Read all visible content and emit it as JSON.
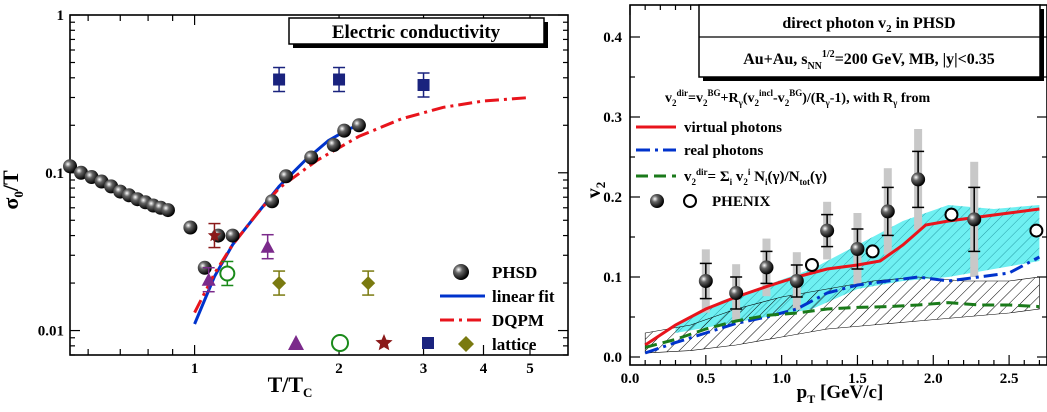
{
  "left": {
    "chart_data": {
      "type": "scatter",
      "title": "Electric conductivity",
      "ylabel": "σ0/T",
      "xlabel": "T/TC",
      "x_scale": "log",
      "y_scale": "log",
      "xlim": [
        0.55,
        6.0
      ],
      "ylim": [
        0.007,
        1.0
      ],
      "x_ticks": [
        "1",
        "2",
        "3",
        "4",
        "5"
      ],
      "y_ticks": [
        "0.01",
        "0.1",
        "1"
      ],
      "series": [
        {
          "name": "PHSD",
          "marker": "sphere",
          "color": "#111111",
          "x": [
            0.55,
            0.58,
            0.61,
            0.64,
            0.67,
            0.7,
            0.73,
            0.76,
            0.79,
            0.82,
            0.85,
            0.88,
            0.98,
            1.05,
            1.12,
            1.2,
            1.45,
            1.55,
            1.75,
            1.95,
            2.05,
            2.2
          ],
          "y": [
            0.11,
            0.1,
            0.094,
            0.088,
            0.082,
            0.076,
            0.072,
            0.068,
            0.065,
            0.062,
            0.06,
            0.058,
            0.045,
            0.025,
            0.04,
            0.04,
            0.066,
            0.095,
            0.125,
            0.15,
            0.185,
            0.2
          ]
        },
        {
          "name": "",
          "marker": "triangle",
          "color": "#7b2a8b",
          "x": [
            1.07,
            1.42
          ],
          "y": [
            0.021,
            0.034
          ]
        },
        {
          "name": "",
          "marker": "open-circle",
          "color": "#1a8a1a",
          "x": [
            1.17
          ],
          "y": [
            0.023
          ]
        },
        {
          "name": "",
          "marker": "star",
          "color": "#8b1a1a",
          "x": [
            1.1
          ],
          "y": [
            0.04
          ]
        },
        {
          "name": "",
          "marker": "square",
          "color": "#1a237e",
          "x": [
            1.5,
            2.0,
            3.0
          ],
          "y": [
            0.39,
            0.39,
            0.36
          ]
        },
        {
          "name": "lattice",
          "marker": "diamond",
          "color": "#7a7a10",
          "x": [
            1.5,
            2.3
          ],
          "y": [
            0.02,
            0.02
          ]
        }
      ],
      "lines": [
        {
          "name": "linear fit",
          "style": "solid",
          "color": "#0033cc",
          "x": [
            1.0,
            1.1,
            1.2,
            1.35,
            1.5,
            1.7,
            1.9,
            2.1,
            2.25
          ],
          "y": [
            0.011,
            0.022,
            0.035,
            0.055,
            0.082,
            0.12,
            0.16,
            0.19,
            0.205
          ]
        },
        {
          "name": "DQPM",
          "style": "dashdot",
          "color": "#e8141c",
          "x": [
            1.0,
            1.1,
            1.2,
            1.35,
            1.5,
            1.8,
            2.2,
            2.7,
            3.3,
            4.0,
            5.0
          ],
          "y": [
            0.013,
            0.023,
            0.035,
            0.055,
            0.08,
            0.12,
            0.17,
            0.22,
            0.26,
            0.285,
            0.3
          ]
        }
      ],
      "legend": [
        "PHSD",
        "linear fit",
        "DQPM",
        "lattice"
      ],
      "legend_position": "bottom-right"
    }
  },
  "right": {
    "chart_data": {
      "type": "line",
      "title_lines": [
        "direct photon v2 in PHSD",
        "Au+Au, sNN1/2=200 GeV, MB, |y|<0.35"
      ],
      "formula": "v2dir=v2BG+Rγ(v2incl-v2BG)/(Rγ-1), with Rγ from",
      "ylabel": "v2",
      "xlabel": "pT [GeV/c]",
      "xlim": [
        0.0,
        2.75
      ],
      "ylim": [
        -0.01,
        0.44
      ],
      "x_ticks": [
        "0.0",
        "0.5",
        "1.0",
        "1.5",
        "2.0",
        "2.5"
      ],
      "y_ticks": [
        "0.0",
        "0.1",
        "0.2",
        "0.3",
        "0.4"
      ],
      "series": [
        {
          "name": "virtual photons",
          "style": "solid",
          "color": "#e8141c",
          "x": [
            0.1,
            0.3,
            0.5,
            0.7,
            0.9,
            1.1,
            1.3,
            1.5,
            1.65,
            1.8,
            1.95,
            2.1,
            2.3,
            2.5,
            2.7
          ],
          "y": [
            0.015,
            0.04,
            0.06,
            0.075,
            0.088,
            0.1,
            0.11,
            0.115,
            0.12,
            0.14,
            0.165,
            0.17,
            0.175,
            0.18,
            0.185
          ]
        },
        {
          "name": "real photons",
          "style": "dashdot",
          "color": "#0033cc",
          "x": [
            0.1,
            0.3,
            0.5,
            0.7,
            0.9,
            1.1,
            1.3,
            1.5,
            1.7,
            1.9,
            2.1,
            2.3,
            2.5,
            2.7
          ],
          "y": [
            0.005,
            0.018,
            0.03,
            0.042,
            0.05,
            0.06,
            0.08,
            0.09,
            0.095,
            0.1,
            0.095,
            0.1,
            0.105,
            0.125
          ]
        },
        {
          "name": "v2dir= Σi v2i Ni(γ)/Ntot(γ)",
          "style": "dashed",
          "color": "#1a7a1a",
          "x": [
            0.1,
            0.3,
            0.5,
            0.7,
            0.9,
            1.1,
            1.3,
            1.5,
            1.7,
            1.9,
            2.1,
            2.3,
            2.5,
            2.7
          ],
          "y": [
            0.012,
            0.022,
            0.035,
            0.045,
            0.052,
            0.055,
            0.06,
            0.062,
            0.063,
            0.065,
            0.068,
            0.065,
            0.065,
            0.063
          ]
        }
      ],
      "phenix_filled": {
        "name": "PHENIX",
        "x": [
          0.5,
          0.7,
          0.9,
          1.1,
          1.3,
          1.5,
          1.7,
          1.9,
          2.27
        ],
        "y": [
          0.095,
          0.08,
          0.112,
          0.095,
          0.158,
          0.135,
          0.182,
          0.222,
          0.172
        ],
        "err": [
          0.022,
          0.02,
          0.02,
          0.02,
          0.02,
          0.025,
          0.03,
          0.035,
          0.04
        ]
      },
      "phenix_open": {
        "x": [
          1.2,
          1.6,
          2.12,
          2.68
        ],
        "y": [
          0.115,
          0.132,
          0.178,
          0.158
        ]
      },
      "legend_position": "upper-left"
    }
  }
}
